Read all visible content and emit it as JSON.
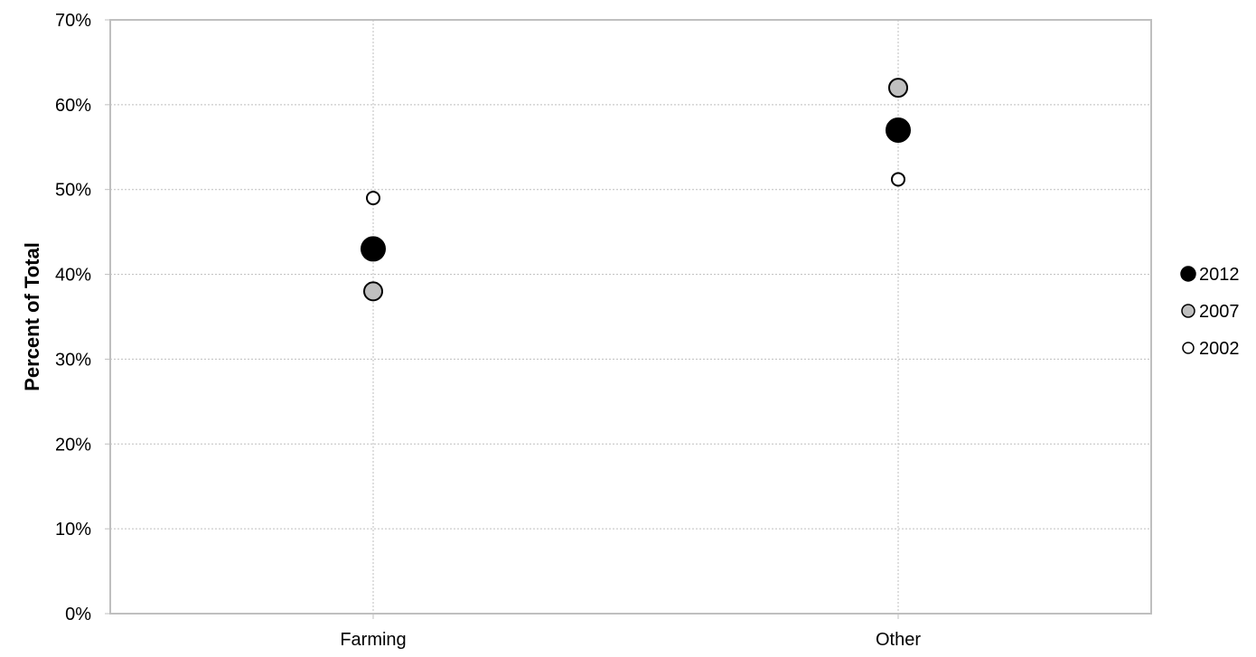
{
  "chart_data": {
    "type": "scatter",
    "categories": [
      "Farming",
      "Other"
    ],
    "series": [
      {
        "name": "2012",
        "values": [
          0.43,
          0.57
        ],
        "fill": "#000000",
        "marker": "large"
      },
      {
        "name": "2007",
        "values": [
          0.38,
          0.62
        ],
        "fill": "#bfbfbf",
        "marker": "medium"
      },
      {
        "name": "2002",
        "values": [
          0.49,
          0.512
        ],
        "fill": "#ffffff",
        "marker": "small"
      }
    ],
    "title": "",
    "xlabel": "",
    "ylabel": "Percent of Total",
    "ylim": [
      0,
      0.7
    ],
    "y_ticks": [
      0,
      0.1,
      0.2,
      0.3,
      0.4,
      0.5,
      0.6,
      0.7
    ],
    "y_tick_labels": [
      "0%",
      "10%",
      "20%",
      "30%",
      "40%",
      "50%",
      "60%",
      "70%"
    ],
    "grid": true,
    "legend_position": "right",
    "colors": {
      "axis": "#bfbfbf",
      "grid": "#bfbfbf",
      "marker_edge": "#000000"
    }
  }
}
